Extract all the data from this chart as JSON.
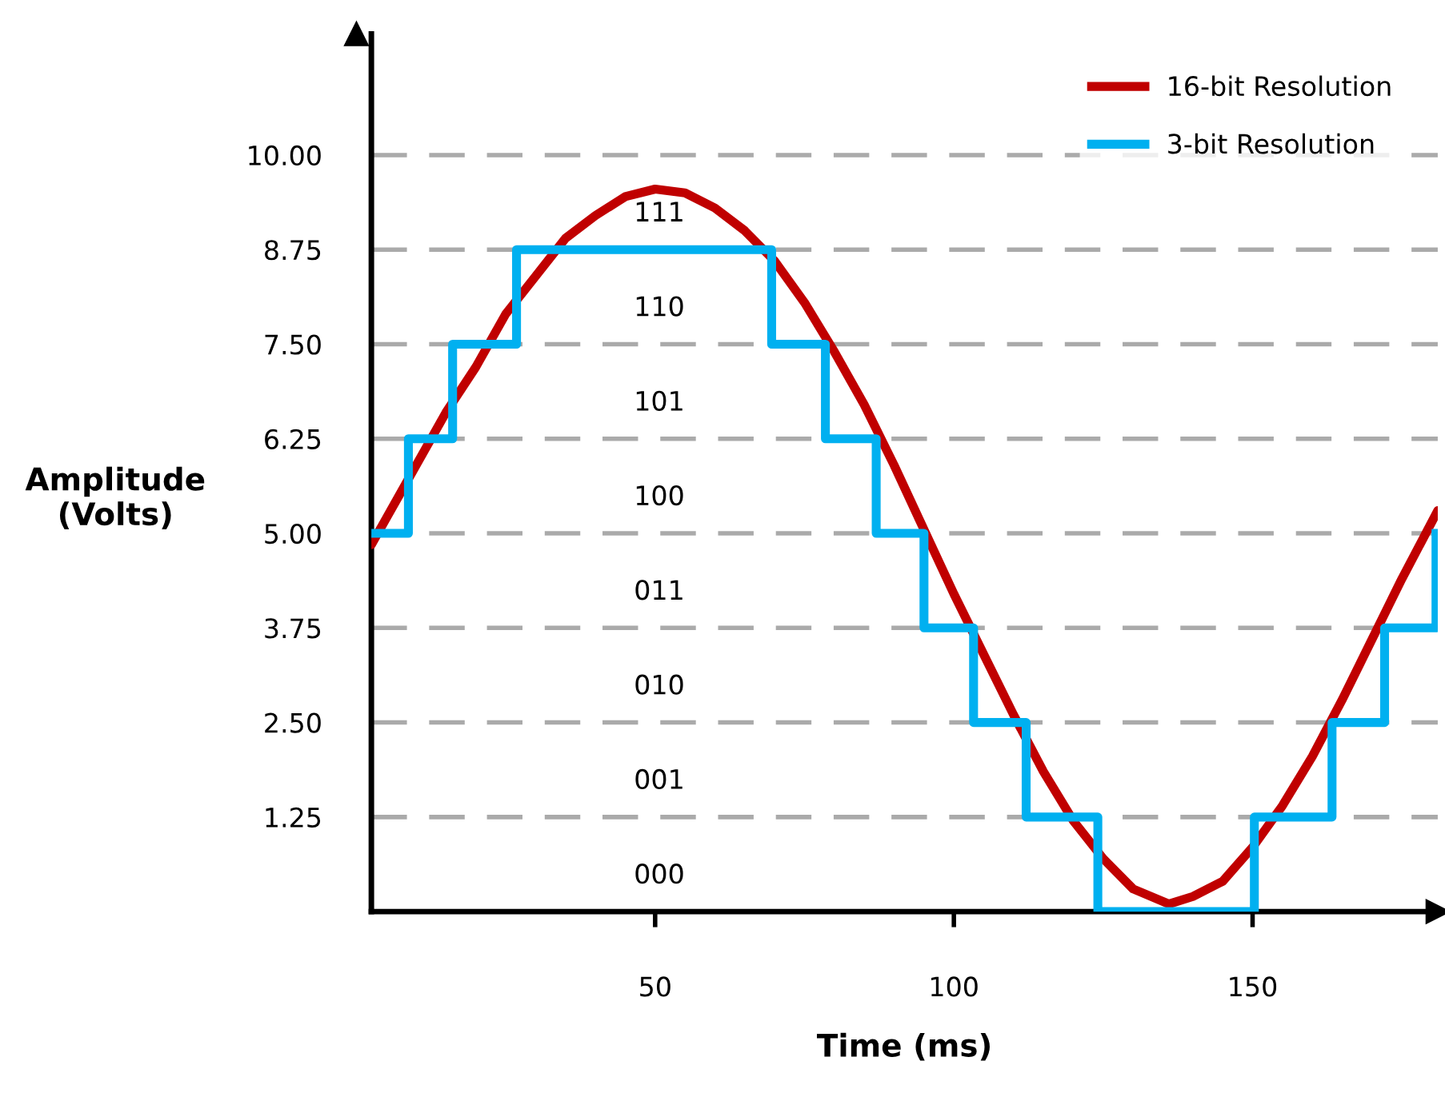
{
  "chart_data": {
    "type": "line",
    "xlabel": "Time (ms)",
    "ylabel": "Amplitude\n(Volts)",
    "xlim": [
      2.5,
      181
    ],
    "ylim": [
      0,
      11.6
    ],
    "xticks": [
      50,
      100,
      150
    ],
    "yticks": [
      1.25,
      {
        "value": 2.5,
        "label": "2.50"
      },
      3.75,
      {
        "value": 5,
        "label": "5.00"
      },
      6.25,
      {
        "value": 7.5,
        "label": "7.50"
      },
      8.75,
      {
        "value": 10,
        "label": "10.00"
      }
    ],
    "grid": "y",
    "legend": "top right",
    "series": [
      {
        "name": "16-bit Resolution",
        "color": "#c00000",
        "x": [
          2.5,
          5,
          10,
          15,
          20,
          25,
          30,
          35,
          40,
          45,
          50,
          55,
          60,
          65,
          70,
          75,
          80,
          85,
          90,
          95,
          100,
          105,
          110,
          115,
          120,
          125,
          130,
          136,
          140,
          145,
          150,
          155,
          160,
          165,
          170,
          175,
          181
        ],
        "values": [
          4.85,
          5.2,
          5.9,
          6.6,
          7.2,
          7.9,
          8.4,
          8.9,
          9.2,
          9.45,
          9.55,
          9.5,
          9.3,
          9.0,
          8.6,
          8.05,
          7.4,
          6.7,
          5.9,
          5.05,
          4.2,
          3.4,
          2.6,
          1.85,
          1.2,
          0.7,
          0.3,
          0.1,
          0.2,
          0.4,
          0.85,
          1.4,
          2.05,
          2.8,
          3.6,
          4.4,
          5.3
        ]
      },
      {
        "name": "3-bit Resolution",
        "color": "#00b0f0",
        "type": "step",
        "x": [
          2.5,
          8.7,
          16.1,
          26.8,
          69.5,
          78.5,
          87,
          95,
          103.3,
          112.1,
          124.1,
          150.3,
          163.3,
          172.1,
          180.7
        ],
        "values": [
          5,
          6.25,
          7.5,
          8.75,
          7.5,
          6.25,
          5,
          3.75,
          2.5,
          1.25,
          0,
          1.25,
          2.5,
          3.75,
          5
        ]
      }
    ],
    "annotations": [
      "000",
      "001",
      "010",
      "011",
      "100",
      "101",
      "110",
      "111"
    ]
  }
}
